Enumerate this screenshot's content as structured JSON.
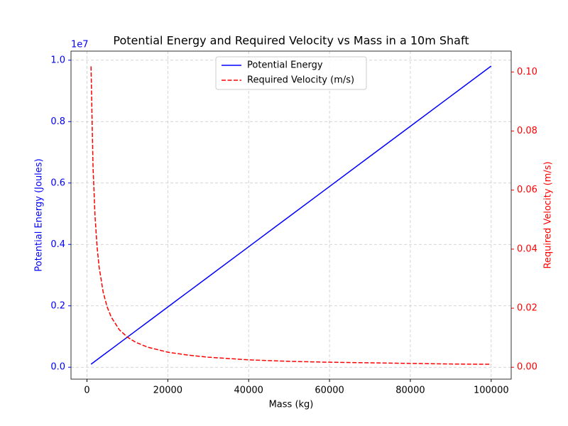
{
  "chart_data": {
    "type": "line",
    "title": "Potential Energy and Required Velocity vs Mass in a 10m Shaft",
    "x_label": "Mass (kg)",
    "y_label": "Potential Energy (Joules)",
    "y2_label": "Required Velocity (m/s)",
    "y_offset_label": "1e7",
    "x": [
      1000,
      1500,
      2000,
      2500,
      3000,
      4000,
      5000,
      6000,
      8000,
      10000,
      12000,
      15000,
      20000,
      25000,
      30000,
      40000,
      50000,
      60000,
      70000,
      80000,
      90000,
      100000
    ],
    "series": [
      {
        "name": "Potential Energy",
        "color": "#0000ff",
        "linestyle": "solid",
        "axis": "y",
        "values": [
          98100,
          147150,
          196200,
          245250,
          294300,
          392400,
          490500,
          588600,
          784800,
          981000,
          1177200,
          1471500,
          1962000,
          2452500,
          2943000,
          3924000,
          4905000,
          5886000,
          6867000,
          7848000,
          8829000,
          9810000
        ]
      },
      {
        "name": "Required Velocity (m/s)",
        "color": "#ff0000",
        "linestyle": "dashed",
        "axis": "y2",
        "values": [
          0.1019,
          0.0679,
          0.051,
          0.0408,
          0.034,
          0.0255,
          0.0204,
          0.017,
          0.0127,
          0.0102,
          0.0085,
          0.0068,
          0.0051,
          0.0041,
          0.0034,
          0.0025,
          0.002,
          0.0017,
          0.0015,
          0.0013,
          0.0011,
          0.001
        ]
      }
    ],
    "xlim": [
      -3950,
      104950
    ],
    "xticks": [
      0,
      20000,
      40000,
      60000,
      80000,
      100000
    ],
    "ylim": [
      -387495,
      10295595
    ],
    "yticks": [
      {
        "value": 0,
        "label": "0.0"
      },
      {
        "value": 2000000,
        "label": "0.2"
      },
      {
        "value": 4000000,
        "label": "0.4"
      },
      {
        "value": 6000000,
        "label": "0.6"
      },
      {
        "value": 8000000,
        "label": "0.8"
      },
      {
        "value": 10000000,
        "label": "1.0"
      }
    ],
    "y2lim": [
      -0.00403,
      0.10707
    ],
    "y2ticks": [
      {
        "value": 0,
        "label": "0.00"
      },
      {
        "value": 0.02,
        "label": "0.02"
      },
      {
        "value": 0.04,
        "label": "0.04"
      },
      {
        "value": 0.06,
        "label": "0.06"
      },
      {
        "value": 0.08,
        "label": "0.08"
      },
      {
        "value": 0.1,
        "label": "0.10"
      }
    ],
    "y_color": "#0000ff",
    "y2_color": "#ff0000",
    "grid": true,
    "legend": "upper center"
  }
}
